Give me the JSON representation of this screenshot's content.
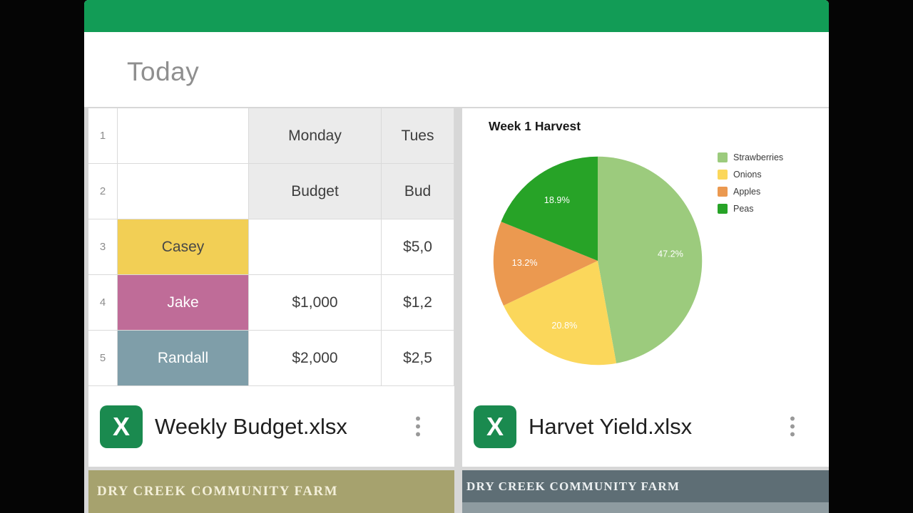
{
  "app": {
    "header_color": "#129C56",
    "section_title": "Today"
  },
  "icons": {
    "excel_letter": "X",
    "excel_icon_color": "#1A8A4F",
    "overflow_menu": "vertical-three-dots"
  },
  "cards": [
    {
      "filename": "Weekly Budget.xlsx",
      "banner_text": "DRY CREEK COMMUNITY FARM",
      "banner_color": "#A6A26E",
      "banner_text_color": "#F3EFD9"
    },
    {
      "filename": "Harvet Yield.xlsx",
      "banner_text": "DRY CREEK COMMUNITY FARM",
      "banner_color": "#5E6E75",
      "banner_color_bottom": "#8E9BA0",
      "banner_text_color": "#EDF1F2"
    }
  ],
  "spreadsheet": {
    "rows": [
      {
        "num": "1",
        "cells": [
          {
            "text": "",
            "bg": "#ffffff"
          },
          {
            "text": "Monday",
            "bg": "#ebebeb"
          },
          {
            "text": "Tues",
            "bg": "#ebebeb"
          }
        ]
      },
      {
        "num": "2",
        "cells": [
          {
            "text": "",
            "bg": "#ffffff"
          },
          {
            "text": "Budget",
            "bg": "#ebebeb"
          },
          {
            "text": "Bud",
            "bg": "#ebebeb"
          }
        ]
      },
      {
        "num": "3",
        "cells": [
          {
            "text": "Casey",
            "bg": "#F2CF55",
            "fg": "#474747"
          },
          {
            "text": "",
            "bg": "#ffffff"
          },
          {
            "text": "$5,0",
            "bg": "#ffffff"
          }
        ]
      },
      {
        "num": "4",
        "cells": [
          {
            "text": "Jake",
            "bg": "#BF6C98",
            "fg": "#ffffff"
          },
          {
            "text": "$1,000",
            "bg": "#ffffff"
          },
          {
            "text": "$1,2",
            "bg": "#ffffff"
          }
        ]
      },
      {
        "num": "5",
        "cells": [
          {
            "text": "Randall",
            "bg": "#7F9EA9",
            "fg": "#ffffff"
          },
          {
            "text": "$2,000",
            "bg": "#ffffff"
          },
          {
            "text": "$2,5",
            "bg": "#ffffff"
          }
        ]
      }
    ]
  },
  "chart_data": {
    "type": "pie",
    "title": "Week 1 Harvest",
    "series": [
      {
        "name": "Strawberries",
        "value": 47.2,
        "label": "47.2%",
        "color": "#9CCB7D"
      },
      {
        "name": "Onions",
        "value": 20.8,
        "label": "20.8%",
        "color": "#FBD75B"
      },
      {
        "name": "Apples",
        "value": 13.2,
        "label": "13.2%",
        "color": "#EB9950"
      },
      {
        "name": "Peas",
        "value": 18.9,
        "label": "18.9%",
        "color": "#27A327"
      }
    ],
    "legend_position": "right",
    "start_angle_deg": 0,
    "direction": "clockwise"
  }
}
